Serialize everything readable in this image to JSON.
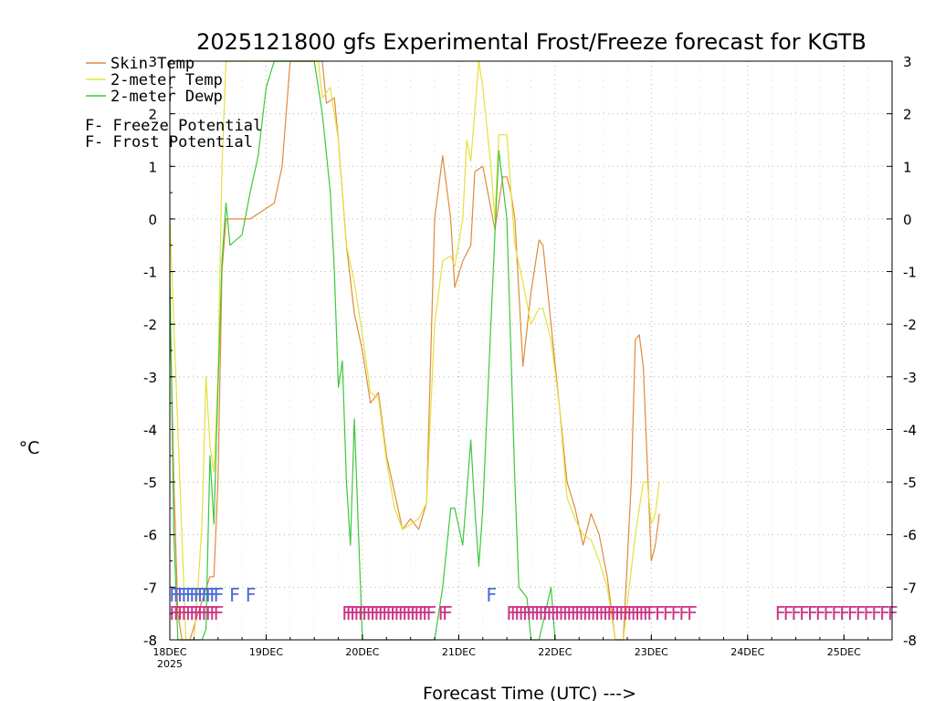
{
  "chart_data": {
    "type": "line",
    "title": "2025121800 gfs Experimental Frost/Freeze forecast for KGTB",
    "ylabel": "°C",
    "xlabel": "Forecast Time (UTC) --->",
    "ylim": [
      -8,
      3
    ],
    "xlim": [
      0,
      180
    ],
    "y_ticks": [
      "-8",
      "-7",
      "-6",
      "-5",
      "-4",
      "-3",
      "-2",
      "-1",
      "0",
      "1",
      "2",
      "3"
    ],
    "x_ticks": [
      {
        "label": "18DEC",
        "sub": "2025",
        "hour": 0
      },
      {
        "label": "19DEC",
        "sub": "",
        "hour": 24
      },
      {
        "label": "20DEC",
        "sub": "",
        "hour": 48
      },
      {
        "label": "21DEC",
        "sub": "",
        "hour": 72
      },
      {
        "label": "22DEC",
        "sub": "",
        "hour": 96
      },
      {
        "label": "23DEC",
        "sub": "",
        "hour": 120
      },
      {
        "label": "24DEC",
        "sub": "",
        "hour": 144
      },
      {
        "label": "25DEC",
        "sub": "",
        "hour": 168
      }
    ],
    "grid": true,
    "series": [
      {
        "name": "Skin Temp",
        "color": "#e08a3c",
        "points": [
          [
            0,
            -1.5
          ],
          [
            1,
            -5
          ],
          [
            2,
            -7.5
          ],
          [
            3,
            -8
          ],
          [
            5,
            -8
          ],
          [
            7,
            -7.5
          ],
          [
            10,
            -6.8
          ],
          [
            11,
            -6.8
          ],
          [
            12,
            -5
          ],
          [
            13,
            -1
          ],
          [
            14,
            0
          ],
          [
            18,
            0
          ],
          [
            20,
            0
          ],
          [
            22,
            0.1
          ],
          [
            24,
            0.2
          ],
          [
            26,
            0.3
          ],
          [
            28,
            1
          ],
          [
            30,
            3
          ],
          [
            38,
            3
          ],
          [
            39,
            2.2
          ],
          [
            41,
            2.3
          ],
          [
            42,
            1.5
          ],
          [
            44,
            -0.5
          ],
          [
            46,
            -1.8
          ],
          [
            48,
            -2.5
          ],
          [
            50,
            -3.5
          ],
          [
            52,
            -3.3
          ],
          [
            54,
            -4.5
          ],
          [
            56,
            -5.2
          ],
          [
            58,
            -5.9
          ],
          [
            60,
            -5.7
          ],
          [
            62,
            -5.9
          ],
          [
            64,
            -5.4
          ],
          [
            66,
            0
          ],
          [
            68,
            1.2
          ],
          [
            70,
            0
          ],
          [
            71,
            -1.3
          ],
          [
            73,
            -0.8
          ],
          [
            75,
            -0.5
          ],
          [
            76,
            0.9
          ],
          [
            78,
            1
          ],
          [
            80,
            0.2
          ],
          [
            81,
            -0.2
          ],
          [
            83,
            0.8
          ],
          [
            84,
            0.8
          ],
          [
            85,
            0.5
          ],
          [
            86,
            0
          ],
          [
            88,
            -2.8
          ],
          [
            90,
            -1.4
          ],
          [
            92,
            -0.4
          ],
          [
            93,
            -0.5
          ],
          [
            95,
            -2
          ],
          [
            97,
            -3.5
          ],
          [
            99,
            -5
          ],
          [
            101,
            -5.5
          ],
          [
            103,
            -6.2
          ],
          [
            105,
            -5.6
          ],
          [
            107,
            -6
          ],
          [
            109,
            -6.8
          ],
          [
            111,
            -8
          ],
          [
            113,
            -8
          ],
          [
            115,
            -5
          ],
          [
            116,
            -2.3
          ],
          [
            117,
            -2.2
          ],
          [
            118,
            -2.8
          ],
          [
            120,
            -6.5
          ],
          [
            121,
            -6.2
          ],
          [
            122,
            -5.6
          ]
        ]
      },
      {
        "name": "2-meter Temp",
        "color": "#e6e03c",
        "points": [
          [
            0,
            0
          ],
          [
            1,
            -2
          ],
          [
            2,
            -4
          ],
          [
            3,
            -6
          ],
          [
            4,
            -8
          ],
          [
            6,
            -8
          ],
          [
            7,
            -7
          ],
          [
            8,
            -5.8
          ],
          [
            9,
            -3
          ],
          [
            10,
            -4.3
          ],
          [
            11,
            -4.8
          ],
          [
            12,
            -3
          ],
          [
            13,
            1
          ],
          [
            14,
            3
          ],
          [
            37,
            3
          ],
          [
            38,
            2.3
          ],
          [
            40,
            2.5
          ],
          [
            42,
            1.5
          ],
          [
            44,
            -0.5
          ],
          [
            46,
            -1.2
          ],
          [
            48,
            -2.2
          ],
          [
            50,
            -3.3
          ],
          [
            52,
            -3.4
          ],
          [
            54,
            -4.6
          ],
          [
            56,
            -5.5
          ],
          [
            58,
            -5.9
          ],
          [
            60,
            -5.8
          ],
          [
            62,
            -5.7
          ],
          [
            64,
            -5.4
          ],
          [
            66,
            -2
          ],
          [
            68,
            -0.8
          ],
          [
            70,
            -0.7
          ],
          [
            71,
            -0.9
          ],
          [
            73,
            0
          ],
          [
            74,
            1.5
          ],
          [
            75,
            1.1
          ],
          [
            77,
            3
          ],
          [
            78,
            2.5
          ],
          [
            80,
            1
          ],
          [
            81,
            0
          ],
          [
            82,
            1.6
          ],
          [
            84,
            1.6
          ],
          [
            86,
            -0.5
          ],
          [
            88,
            -1.2
          ],
          [
            90,
            -2
          ],
          [
            92,
            -1.7
          ],
          [
            93,
            -1.7
          ],
          [
            95,
            -2.3
          ],
          [
            97,
            -3.5
          ],
          [
            99,
            -5.3
          ],
          [
            101,
            -5.7
          ],
          [
            103,
            -6
          ],
          [
            105,
            -6.1
          ],
          [
            107,
            -6.5
          ],
          [
            109,
            -7
          ],
          [
            111,
            -8
          ],
          [
            113,
            -8
          ],
          [
            116,
            -6
          ],
          [
            118,
            -5
          ],
          [
            119,
            -5
          ],
          [
            120,
            -5.8
          ],
          [
            121,
            -5.6
          ],
          [
            122,
            -5
          ]
        ]
      },
      {
        "name": "2-meter Dewp",
        "color": "#3cc83c",
        "points": [
          [
            0,
            -1
          ],
          [
            1,
            -6
          ],
          [
            2,
            -8
          ],
          [
            4,
            -8
          ],
          [
            6,
            -8
          ],
          [
            8,
            -8
          ],
          [
            9,
            -7.8
          ],
          [
            10,
            -4.5
          ],
          [
            11,
            -5.8
          ],
          [
            12,
            -3.2
          ],
          [
            13,
            -0.8
          ],
          [
            14,
            0.3
          ],
          [
            15,
            -0.5
          ],
          [
            18,
            -0.3
          ],
          [
            20,
            0.5
          ],
          [
            22,
            1.2
          ],
          [
            24,
            2.5
          ],
          [
            26,
            3
          ],
          [
            36,
            3
          ],
          [
            38,
            2
          ],
          [
            40,
            0.5
          ],
          [
            41,
            -1
          ],
          [
            42,
            -3.2
          ],
          [
            43,
            -2.7
          ],
          [
            44,
            -5
          ],
          [
            45,
            -6.2
          ],
          [
            46,
            -3.8
          ],
          [
            48,
            -8
          ],
          [
            50,
            -8
          ],
          [
            52,
            -8
          ],
          [
            54,
            -8
          ],
          [
            56,
            -8
          ],
          [
            58,
            -8
          ],
          [
            60,
            -8
          ],
          [
            62,
            -8
          ],
          [
            64,
            -8
          ],
          [
            66,
            -8
          ],
          [
            68,
            -7
          ],
          [
            70,
            -5.5
          ],
          [
            71,
            -5.5
          ],
          [
            73,
            -6.2
          ],
          [
            75,
            -4.2
          ],
          [
            76,
            -5.5
          ],
          [
            77,
            -6.6
          ],
          [
            78,
            -5.5
          ],
          [
            80,
            -2
          ],
          [
            81,
            -0.3
          ],
          [
            82,
            1.3
          ],
          [
            84,
            0
          ],
          [
            86,
            -5
          ],
          [
            87,
            -7
          ],
          [
            89,
            -7.2
          ],
          [
            90,
            -8
          ],
          [
            92,
            -8
          ],
          [
            95,
            -7
          ],
          [
            96,
            -8
          ]
        ]
      }
    ],
    "legend": [
      {
        "label": "Skin Temp",
        "color": "#e08a3c"
      },
      {
        "label": "2-meter Temp",
        "color": "#e6e03c"
      },
      {
        "label": "2-meter Dewp",
        "color": "#3cc83c"
      }
    ],
    "legend_potential": [
      {
        "label": "F - Freeze Potential",
        "color": "#cc3388"
      },
      {
        "label": "F - Frost Potential",
        "color": "#4a6ad8"
      }
    ],
    "frost_potential": {
      "color": "#4a6ad8",
      "letter": "F",
      "level": -7.15,
      "hours": [
        0,
        1,
        2,
        3,
        4,
        5,
        6,
        7,
        8,
        9,
        10,
        11,
        15,
        19,
        79
      ]
    },
    "freeze_potential": {
      "color": "#cc3388",
      "letter": "F",
      "level": -7.5,
      "hours": [
        0,
        1,
        2,
        3,
        4,
        5,
        6,
        7,
        8,
        9,
        10,
        11,
        43,
        44,
        45,
        46,
        47,
        48,
        49,
        50,
        51,
        52,
        53,
        54,
        55,
        56,
        57,
        58,
        59,
        60,
        61,
        62,
        63,
        64,
        67,
        68,
        84,
        85,
        86,
        87,
        88,
        89,
        90,
        91,
        92,
        93,
        94,
        95,
        96,
        97,
        98,
        99,
        100,
        101,
        102,
        103,
        104,
        105,
        106,
        107,
        108,
        109,
        110,
        111,
        112,
        113,
        114,
        115,
        116,
        117,
        118,
        119,
        121,
        123,
        125,
        127,
        129,
        151,
        153,
        155,
        157,
        159,
        161,
        163,
        165,
        167,
        169,
        171,
        173,
        175,
        177,
        179
      ]
    }
  }
}
